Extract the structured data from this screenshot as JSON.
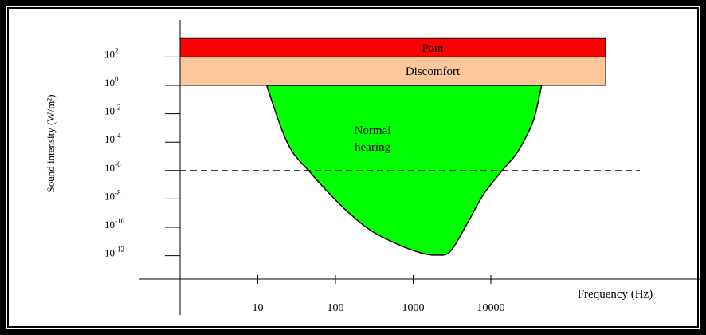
{
  "chart_data": {
    "type": "area",
    "title": "",
    "xlabel": "Frequency (Hz)",
    "ylabel": "Sound intensity (W/m²)",
    "x_scale": "log",
    "y_scale": "log",
    "x_ticks": [
      {
        "value": 10,
        "label": "10"
      },
      {
        "value": 100,
        "label": "100"
      },
      {
        "value": 1000,
        "label": "1000"
      },
      {
        "value": 10000,
        "label": "10000"
      }
    ],
    "y_ticks": [
      {
        "value": 100,
        "base": "10",
        "exp": "2"
      },
      {
        "value": 1,
        "base": "10",
        "exp": "0"
      },
      {
        "value": 0.01,
        "base": "10",
        "exp": "-2"
      },
      {
        "value": 0.0001,
        "base": "10",
        "exp": "-4"
      },
      {
        "value": 1e-06,
        "base": "10",
        "exp": "-6"
      },
      {
        "value": 1e-08,
        "base": "10",
        "exp": "-8"
      },
      {
        "value": 1e-10,
        "base": "10",
        "exp": "-10"
      },
      {
        "value": 1e-12,
        "base": "10",
        "exp": "-12"
      }
    ],
    "bands": [
      {
        "label": "Pain",
        "y_from": 100,
        "y_to": 2000,
        "x_from": 1,
        "x_to": 300000,
        "color": "#ff0000"
      },
      {
        "label": "Discomfort",
        "y_from": 1,
        "y_to": 100,
        "x_from": 1,
        "x_to": 300000,
        "color": "#fcc89b"
      }
    ],
    "region": {
      "label_line1": "Normal",
      "label_line2": "hearing",
      "color": "#00ff00",
      "boundary": [
        {
          "x": 13,
          "y": 1
        },
        {
          "x": 20,
          "y": 0.001
        },
        {
          "x": 28,
          "y": 2e-05
        },
        {
          "x": 45,
          "y": 1e-06
        },
        {
          "x": 80,
          "y": 3e-08
        },
        {
          "x": 150,
          "y": 1e-09
        },
        {
          "x": 300,
          "y": 5e-11
        },
        {
          "x": 700,
          "y": 5e-12
        },
        {
          "x": 1300,
          "y": 1.5e-12
        },
        {
          "x": 2000,
          "y": 1.1e-12
        },
        {
          "x": 3000,
          "y": 2e-12
        },
        {
          "x": 5000,
          "y": 2e-10
        },
        {
          "x": 8000,
          "y": 2e-08
        },
        {
          "x": 14000,
          "y": 1e-06
        },
        {
          "x": 22000,
          "y": 2e-05
        },
        {
          "x": 35000,
          "y": 0.003
        },
        {
          "x": 45000,
          "y": 1
        }
      ]
    },
    "threshold_line": {
      "y": 1e-06,
      "style": "dashed"
    },
    "xlim": [
      1,
      500000
    ],
    "ylim": [
      1e-14,
      2000
    ],
    "grid": false,
    "legend": "none"
  }
}
